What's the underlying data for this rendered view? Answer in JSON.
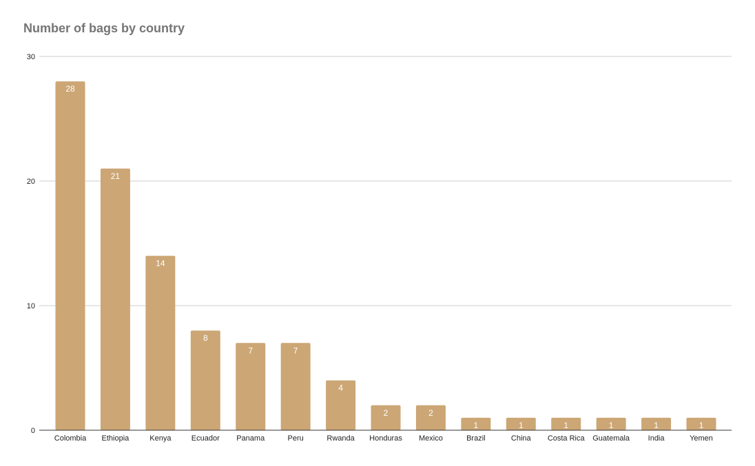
{
  "chart_data": {
    "type": "bar",
    "title": "Number of bags by country",
    "xlabel": "",
    "ylabel": "",
    "categories": [
      "Colombia",
      "Ethiopia",
      "Kenya",
      "Ecuador",
      "Panama",
      "Peru",
      "Rwanda",
      "Honduras",
      "Mexico",
      "Brazil",
      "China",
      "Costa Rica",
      "Guatemala",
      "India",
      "Yemen"
    ],
    "values": [
      28,
      21,
      14,
      8,
      7,
      7,
      4,
      2,
      2,
      1,
      1,
      1,
      1,
      1,
      1
    ],
    "ylim": [
      0,
      30
    ],
    "yticks": [
      0,
      10,
      20,
      30
    ],
    "grid": true,
    "legend": "none",
    "data_labels": true,
    "colors": {
      "bar": "#cca675",
      "title": "#757575",
      "gridline": "#cccccc",
      "axis": "#333333",
      "data_label": "#ffffff"
    }
  }
}
